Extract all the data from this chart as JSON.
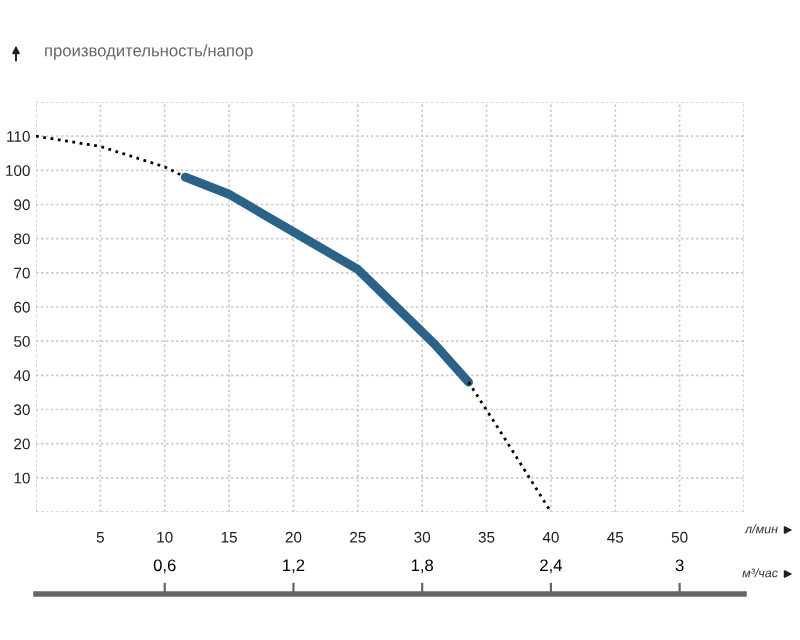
{
  "chart_data": {
    "type": "line",
    "ylabel": "производительность/напор",
    "xlabel": "л/мин",
    "x2label": "м³/час",
    "series": [
      {
        "color": "#000000",
        "line_style": "dotted",
        "x": [
          0,
          5,
          10,
          11.6
        ],
        "values": [
          110,
          107,
          101,
          98
        ]
      },
      {
        "color": "#2b6287",
        "line_style": "solid",
        "x": [
          11.6,
          15,
          20,
          25,
          28,
          31,
          33.6
        ],
        "values": [
          98,
          93,
          82,
          71,
          60,
          49,
          38
        ]
      },
      {
        "color": "#000000",
        "line_style": "dotted",
        "x": [
          33.6,
          36,
          38,
          40
        ],
        "values": [
          38,
          24,
          12,
          0
        ]
      }
    ],
    "xlim": [
      0,
      55
    ],
    "xticks": [
      {
        "value": 0,
        "label": null
      },
      5,
      10,
      15,
      20,
      25,
      30,
      35,
      40,
      45,
      50,
      {
        "value": 55,
        "label": null
      }
    ],
    "ylim": [
      0,
      120
    ],
    "yticks": [
      {
        "value": 0,
        "label": null
      },
      10,
      20,
      30,
      40,
      50,
      60,
      70,
      80,
      90,
      100,
      110,
      {
        "value": 120,
        "label": null
      }
    ],
    "x2lim": [
      0,
      3.3
    ],
    "x2ticks": [
      {
        "value": 0.6,
        "label": "0,6"
      },
      {
        "value": 1.2,
        "label": "1,2"
      },
      {
        "value": 1.8,
        "label": "1,8"
      },
      {
        "value": 2.4,
        "label": "2,4"
      },
      {
        "value": 3,
        "label": "3"
      }
    ],
    "grid": true,
    "marker": "none",
    "legend": false
  }
}
